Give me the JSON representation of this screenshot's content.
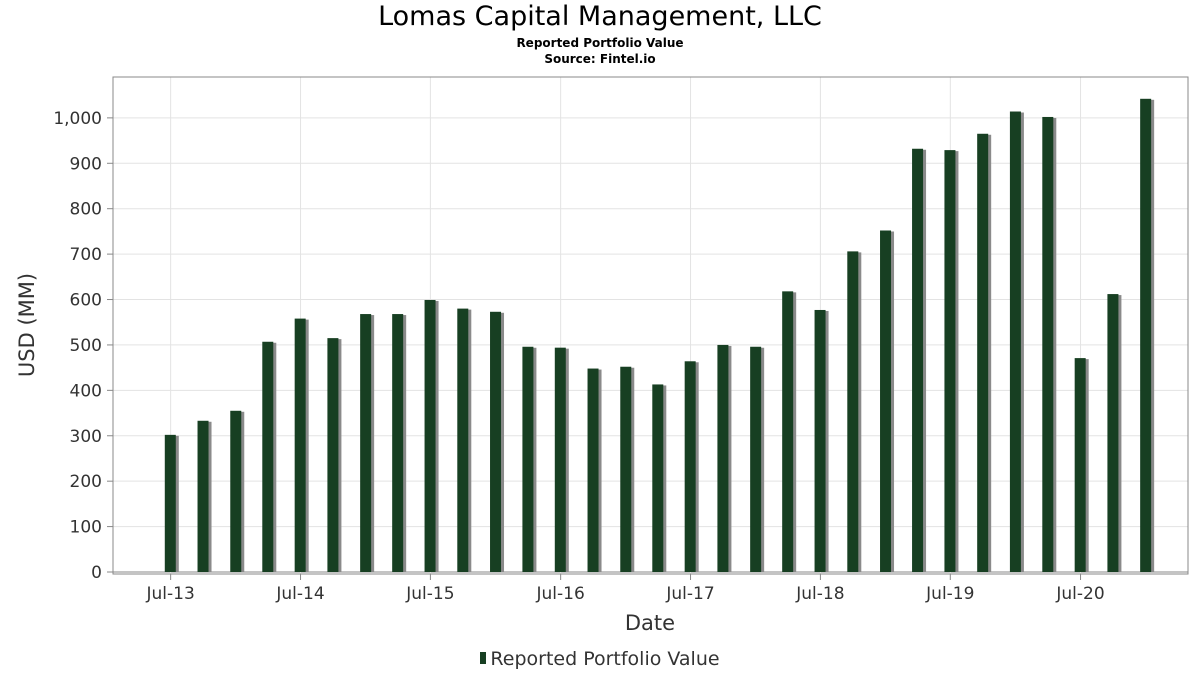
{
  "header": {
    "title": "Lomas Capital Management, LLC",
    "subtitle_1": "Reported Portfolio Value",
    "subtitle_2": "Source: Fintel.io"
  },
  "legend": {
    "label": "Reported Portfolio Value",
    "placement": "bottom-center"
  },
  "colors": {
    "bar": "#173f22",
    "bar_shadow": "#8a8a8a",
    "grid": "#e3e3e3",
    "axis": "#888888",
    "text": "#333333"
  },
  "chart_data": {
    "type": "bar",
    "title": "Lomas Capital Management, LLC",
    "subtitle": "Reported Portfolio Value",
    "xlabel": "Date",
    "ylabel": "USD (MM)",
    "ylim": [
      0,
      1090
    ],
    "yticks": [
      0,
      100,
      200,
      300,
      400,
      500,
      600,
      700,
      800,
      900,
      1000
    ],
    "ytick_labels": [
      "0",
      "100",
      "200",
      "300",
      "400",
      "500",
      "600",
      "700",
      "800",
      "900",
      "1,000"
    ],
    "xlim": [
      "2013-01-20",
      "2021-04-29"
    ],
    "xticks": [
      "2013-07-01",
      "2014-07-01",
      "2015-07-01",
      "2016-07-01",
      "2017-07-01",
      "2018-07-01",
      "2019-07-01",
      "2020-07-01"
    ],
    "xtick_labels": [
      "Jul-13",
      "Jul-14",
      "Jul-15",
      "Jul-16",
      "Jul-17",
      "Jul-18",
      "Jul-19",
      "Jul-20"
    ],
    "grid": true,
    "legend_position": "bottom",
    "series": [
      {
        "name": "Reported Portfolio Value",
        "x": [
          "2013-06-30",
          "2013-09-30",
          "2013-12-31",
          "2014-03-31",
          "2014-06-30",
          "2014-09-30",
          "2014-12-31",
          "2015-03-31",
          "2015-06-30",
          "2015-09-30",
          "2015-12-31",
          "2016-03-31",
          "2016-06-30",
          "2016-09-30",
          "2016-12-31",
          "2017-03-31",
          "2017-06-30",
          "2017-09-30",
          "2017-12-31",
          "2018-03-31",
          "2018-06-30",
          "2018-09-30",
          "2018-12-31",
          "2019-03-31",
          "2019-06-30",
          "2019-09-30",
          "2019-12-31",
          "2020-03-31",
          "2020-06-30",
          "2020-09-30",
          "2020-12-31"
        ],
        "values": [
          302,
          333,
          355,
          507,
          558,
          515,
          568,
          568,
          599,
          580,
          573,
          496,
          494,
          448,
          452,
          413,
          464,
          500,
          496,
          618,
          577,
          706,
          752,
          932,
          929,
          965,
          1014,
          1002,
          471,
          612,
          1042
        ]
      }
    ]
  }
}
